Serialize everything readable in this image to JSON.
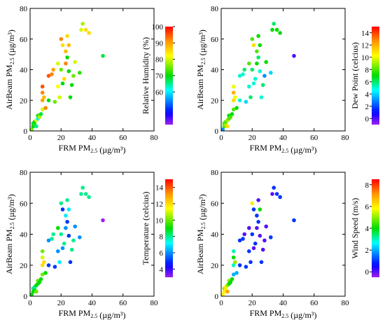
{
  "chart_data": [
    {
      "type": "scatter",
      "xlabel": "FRM  PM2.5 (µg/m³)",
      "ylabel": "AirBeam PM2.5 (µg/m³)",
      "xlim": [
        0,
        80
      ],
      "ylim": [
        0,
        80
      ],
      "xticks": [
        0,
        20,
        40,
        60,
        80
      ],
      "yticks": [
        0,
        20,
        40,
        60,
        80
      ],
      "colorbar": {
        "label": "Relative Humidity (%)",
        "range": [
          40,
          100
        ],
        "ticks": [
          60,
          70,
          80,
          90,
          100
        ]
      },
      "points": [
        [
          1,
          1,
          75
        ],
        [
          2,
          3,
          70
        ],
        [
          2,
          5,
          68
        ],
        [
          3,
          4,
          72
        ],
        [
          3,
          6,
          70
        ],
        [
          4,
          7,
          82
        ],
        [
          4,
          3,
          65
        ],
        [
          5,
          8,
          60
        ],
        [
          5,
          10,
          72
        ],
        [
          6,
          9,
          78
        ],
        [
          7,
          11,
          68
        ],
        [
          8,
          14,
          80
        ],
        [
          8,
          20,
          90
        ],
        [
          8,
          25,
          92
        ],
        [
          8,
          29,
          95
        ],
        [
          9,
          22,
          88
        ],
        [
          10,
          15,
          92
        ],
        [
          12,
          20,
          70
        ],
        [
          12,
          36,
          95
        ],
        [
          14,
          37,
          92
        ],
        [
          15,
          40,
          90
        ],
        [
          16,
          19,
          75
        ],
        [
          18,
          29,
          82
        ],
        [
          18,
          44,
          80
        ],
        [
          19,
          22,
          80
        ],
        [
          20,
          60,
          92
        ],
        [
          20,
          40,
          75
        ],
        [
          21,
          56,
          85
        ],
        [
          21,
          31,
          70
        ],
        [
          22,
          34,
          85
        ],
        [
          23,
          52,
          88
        ],
        [
          23,
          44,
          92
        ],
        [
          24,
          48,
          70
        ],
        [
          24,
          62,
          85
        ],
        [
          25,
          39,
          70
        ],
        [
          25,
          56,
          88
        ],
        [
          26,
          22,
          70
        ],
        [
          27,
          30,
          70
        ],
        [
          28,
          36,
          75
        ],
        [
          29,
          45,
          80
        ],
        [
          32,
          38,
          72
        ],
        [
          33,
          66,
          80
        ],
        [
          34,
          70,
          78
        ],
        [
          36,
          66,
          85
        ],
        [
          38,
          64,
          85
        ],
        [
          47,
          49,
          68
        ]
      ]
    },
    {
      "type": "scatter",
      "xlabel": "FRM  PM2.5 (µg/m³)",
      "ylabel": "AirBeam PM2.5 (µg/m³)",
      "xlim": [
        0,
        80
      ],
      "ylim": [
        0,
        80
      ],
      "xticks": [
        0,
        20,
        40,
        60,
        80
      ],
      "yticks": [
        0,
        20,
        40,
        60,
        80
      ],
      "colorbar": {
        "label": "Dew Point (celcius)",
        "range": [
          -1,
          15
        ],
        "ticks": [
          0,
          2,
          4,
          6,
          8,
          10,
          12,
          14
        ]
      },
      "points": [
        [
          1,
          1,
          3
        ],
        [
          2,
          3,
          8
        ],
        [
          2,
          5,
          8
        ],
        [
          3,
          4,
          9
        ],
        [
          3,
          6,
          8
        ],
        [
          4,
          7,
          9
        ],
        [
          4,
          3,
          11
        ],
        [
          5,
          8,
          8
        ],
        [
          5,
          10,
          7
        ],
        [
          6,
          9,
          8
        ],
        [
          7,
          11,
          7
        ],
        [
          8,
          14,
          8
        ],
        [
          8,
          20,
          11
        ],
        [
          8,
          25,
          12
        ],
        [
          8,
          29,
          10
        ],
        [
          9,
          22,
          10
        ],
        [
          10,
          15,
          7
        ],
        [
          12,
          20,
          5
        ],
        [
          12,
          36,
          5
        ],
        [
          14,
          37,
          5
        ],
        [
          15,
          40,
          6
        ],
        [
          16,
          19,
          4
        ],
        [
          18,
          29,
          5
        ],
        [
          18,
          44,
          8
        ],
        [
          19,
          22,
          6
        ],
        [
          20,
          60,
          8
        ],
        [
          20,
          40,
          6
        ],
        [
          21,
          56,
          11
        ],
        [
          21,
          31,
          5
        ],
        [
          22,
          34,
          5
        ],
        [
          23,
          52,
          8
        ],
        [
          23,
          44,
          7
        ],
        [
          24,
          48,
          6
        ],
        [
          24,
          62,
          7
        ],
        [
          25,
          39,
          5
        ],
        [
          25,
          56,
          7
        ],
        [
          26,
          22,
          5
        ],
        [
          27,
          30,
          6
        ],
        [
          28,
          36,
          3
        ],
        [
          29,
          45,
          7
        ],
        [
          32,
          38,
          4
        ],
        [
          33,
          66,
          7
        ],
        [
          34,
          70,
          6
        ],
        [
          36,
          66,
          7
        ],
        [
          38,
          64,
          7
        ],
        [
          47,
          49,
          0
        ]
      ]
    },
    {
      "type": "scatter",
      "xlabel": "FRM  PM2.5 (µg/m³)",
      "ylabel": "AirBeam PM2.5 (µg/m³)",
      "xlim": [
        0,
        80
      ],
      "ylim": [
        0,
        80
      ],
      "xticks": [
        0,
        20,
        40,
        60,
        80
      ],
      "yticks": [
        0,
        20,
        40,
        60,
        80
      ],
      "colorbar": {
        "label": "Temperature (celcius)",
        "range": [
          3,
          15
        ],
        "ticks": [
          4,
          6,
          8,
          10,
          12,
          14
        ]
      },
      "points": [
        [
          1,
          1,
          9
        ],
        [
          2,
          3,
          9
        ],
        [
          2,
          5,
          8
        ],
        [
          3,
          4,
          9
        ],
        [
          3,
          6,
          8
        ],
        [
          4,
          7,
          9
        ],
        [
          4,
          3,
          10
        ],
        [
          5,
          8,
          9
        ],
        [
          5,
          10,
          10
        ],
        [
          6,
          9,
          9
        ],
        [
          7,
          11,
          9
        ],
        [
          8,
          14,
          10
        ],
        [
          8,
          20,
          12
        ],
        [
          8,
          25,
          11
        ],
        [
          8,
          29,
          10
        ],
        [
          9,
          22,
          12
        ],
        [
          10,
          15,
          9
        ],
        [
          12,
          20,
          5
        ],
        [
          12,
          36,
          6
        ],
        [
          14,
          37,
          8
        ],
        [
          15,
          40,
          8
        ],
        [
          16,
          19,
          5
        ],
        [
          18,
          29,
          6
        ],
        [
          18,
          44,
          9
        ],
        [
          19,
          22,
          7
        ],
        [
          20,
          60,
          8
        ],
        [
          20,
          40,
          8
        ],
        [
          21,
          56,
          5
        ],
        [
          21,
          31,
          6
        ],
        [
          22,
          34,
          8
        ],
        [
          23,
          52,
          7
        ],
        [
          23,
          44,
          6
        ],
        [
          24,
          48,
          5
        ],
        [
          24,
          62,
          8
        ],
        [
          25,
          39,
          5
        ],
        [
          25,
          56,
          7
        ],
        [
          26,
          22,
          5
        ],
        [
          27,
          30,
          8
        ],
        [
          28,
          36,
          8
        ],
        [
          29,
          45,
          6
        ],
        [
          32,
          38,
          6
        ],
        [
          33,
          66,
          8
        ],
        [
          34,
          70,
          8
        ],
        [
          36,
          66,
          8
        ],
        [
          38,
          64,
          8
        ],
        [
          47,
          49,
          3
        ]
      ]
    },
    {
      "type": "scatter",
      "xlabel": "FRM  PM2.5 (µg/m³)",
      "ylabel": "AirBeam PM2.5 (µg/m³)",
      "xlim": [
        0,
        80
      ],
      "ylim": [
        0,
        80
      ],
      "xticks": [
        0,
        20,
        40,
        60,
        80
      ],
      "yticks": [
        0,
        20,
        40,
        60,
        80
      ],
      "colorbar": {
        "label": "Wind Speed (m/s)",
        "range": [
          -0.5,
          8.5
        ],
        "ticks": [
          0,
          2,
          4,
          6,
          8
        ]
      },
      "points": [
        [
          1,
          1,
          6
        ],
        [
          2,
          3,
          6
        ],
        [
          2,
          5,
          5
        ],
        [
          3,
          4,
          6
        ],
        [
          3,
          6,
          6
        ],
        [
          4,
          7,
          5
        ],
        [
          4,
          3,
          7
        ],
        [
          5,
          8,
          4
        ],
        [
          5,
          10,
          5
        ],
        [
          6,
          9,
          4
        ],
        [
          7,
          11,
          4
        ],
        [
          8,
          14,
          2
        ],
        [
          8,
          20,
          3
        ],
        [
          8,
          25,
          4
        ],
        [
          8,
          29,
          3
        ],
        [
          9,
          22,
          5
        ],
        [
          10,
          15,
          2
        ],
        [
          12,
          20,
          1
        ],
        [
          12,
          36,
          1
        ],
        [
          14,
          37,
          1
        ],
        [
          15,
          40,
          0
        ],
        [
          16,
          19,
          1
        ],
        [
          18,
          29,
          1
        ],
        [
          18,
          44,
          0
        ],
        [
          19,
          22,
          1
        ],
        [
          20,
          60,
          6
        ],
        [
          20,
          40,
          1
        ],
        [
          21,
          56,
          1
        ],
        [
          21,
          31,
          0
        ],
        [
          22,
          34,
          1
        ],
        [
          23,
          52,
          1
        ],
        [
          23,
          44,
          0
        ],
        [
          24,
          48,
          1
        ],
        [
          24,
          62,
          0
        ],
        [
          25,
          39,
          0
        ],
        [
          25,
          56,
          4
        ],
        [
          26,
          22,
          1
        ],
        [
          27,
          30,
          0
        ],
        [
          28,
          36,
          0
        ],
        [
          29,
          45,
          0
        ],
        [
          32,
          38,
          1
        ],
        [
          33,
          66,
          0
        ],
        [
          34,
          70,
          1
        ],
        [
          36,
          66,
          1
        ],
        [
          38,
          64,
          1
        ],
        [
          47,
          49,
          1
        ]
      ]
    }
  ]
}
